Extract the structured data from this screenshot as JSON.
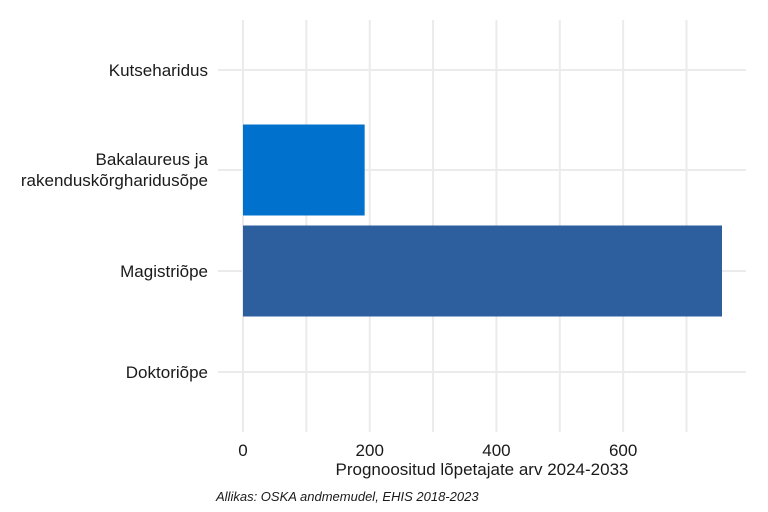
{
  "chart_data": {
    "type": "bar",
    "orientation": "horizontal",
    "categories": [
      "Kutseharidus",
      "Bakalaureus ja\nrakenduskõrgharidusõpe",
      "Magistriõpe",
      "Doktoriõpe"
    ],
    "values": [
      0,
      192,
      756,
      0
    ],
    "colors": [
      "#0072ce",
      "#0072ce",
      "#2d5f9e",
      "#2d5f9e"
    ],
    "xlabel": "Prognoositud lõpetajate arv 2024-2033",
    "ylabel": "",
    "xlim": [
      0,
      800
    ],
    "xticks": [
      0,
      200,
      400,
      600
    ],
    "grid": true,
    "caption": "Allikas: OSKA andmemudel, EHIS 2018-2023"
  }
}
